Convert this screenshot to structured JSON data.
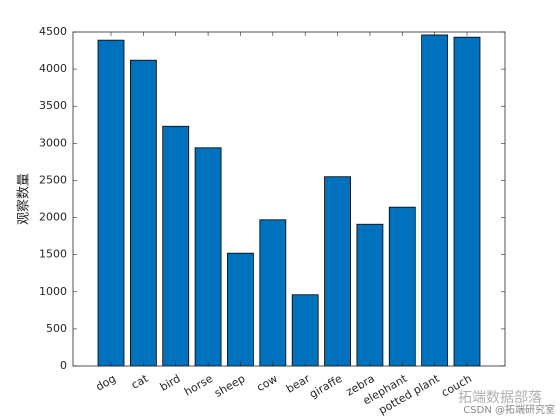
{
  "chart_data": {
    "type": "bar",
    "ylabel": "观察数量",
    "categories": [
      "dog",
      "cat",
      "bird",
      "horse",
      "sheep",
      "cow",
      "bear",
      "giraffe",
      "zebra",
      "elephant",
      "potted plant",
      "couch"
    ],
    "values": [
      4390,
      4120,
      3230,
      2940,
      1520,
      1970,
      960,
      2550,
      1910,
      2140,
      4460,
      4430
    ],
    "color": "#0072bd",
    "ylim": [
      0,
      4500
    ],
    "yticks": [
      0,
      500,
      1000,
      1500,
      2000,
      2500,
      3000,
      3500,
      4000,
      4500
    ],
    "grid": false
  },
  "watermark": {
    "brand": "拓端数据部落",
    "credit": "CSDN @拓端研究室"
  }
}
